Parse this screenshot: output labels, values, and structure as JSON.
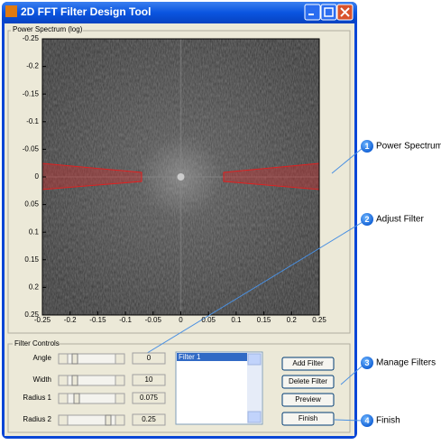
{
  "window": {
    "title": "2D FFT Filter Design Tool"
  },
  "spectrum_panel": {
    "title": "Power Spectrum (log)"
  },
  "plot": {
    "xlim": [
      -0.25,
      0.25
    ],
    "ylim": [
      -0.25,
      0.25
    ],
    "xticks": [
      -0.25,
      -0.2,
      -0.15,
      -0.1,
      -0.05,
      0,
      0.05,
      0.1,
      0.15,
      0.2,
      0.25
    ],
    "yticks": [
      -0.25,
      -0.2,
      -0.15,
      -0.1,
      -0.05,
      0,
      0.05,
      0.1,
      0.15,
      0.2,
      0.25
    ]
  },
  "controls_panel": {
    "title": "Filter Controls",
    "rows": [
      {
        "label": "Angle",
        "value": "0"
      },
      {
        "label": "Width",
        "value": "10"
      },
      {
        "label": "Radius 1",
        "value": "0.075"
      },
      {
        "label": "Radius 2",
        "value": "0.25"
      }
    ]
  },
  "filter_list": {
    "items": [
      "Filter 1"
    ]
  },
  "buttons": [
    "Add Filter",
    "Delete Filter",
    "Preview",
    "Finish"
  ],
  "callouts": [
    {
      "number": "1",
      "label": "Power Spectrum"
    },
    {
      "number": "2",
      "label": "Adjust Filter"
    },
    {
      "number": "3",
      "label": "Manage Filters"
    },
    {
      "number": "4",
      "label": "Finish"
    }
  ]
}
